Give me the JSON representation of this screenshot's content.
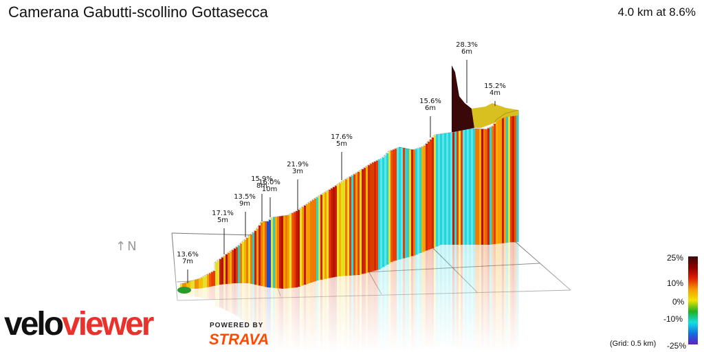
{
  "header": {
    "title": "Camerana Gabutti-scollino Gottasecca",
    "summary": "4.0 km at 8.6%"
  },
  "compass": "↑N",
  "legend": {
    "labels": [
      "25%",
      "10%",
      "0%",
      "-10%",
      "-25%"
    ],
    "grid_note": "(Grid: 0.5 km)",
    "colors": [
      "#3b0a0a",
      "#8b0000",
      "#e02000",
      "#f59a00",
      "#f2e200",
      "#20b020",
      "#10e0e0",
      "#1070e0",
      "#6020c0"
    ]
  },
  "branding": {
    "logo_a": "velo",
    "logo_b": "viewer",
    "powered_by": "POWERED BY",
    "strava": "STRAVA"
  },
  "chart_data": {
    "type": "area",
    "title": "Camerana Gabutti-scollino Gottasecca",
    "distance_km": 4.0,
    "avg_gradient_pct": 8.6,
    "grid_km": 0.5,
    "annotations": [
      {
        "gradient": "13.6%",
        "length": "7m"
      },
      {
        "gradient": "17.1%",
        "length": "5m"
      },
      {
        "gradient": "13.5%",
        "length": "9m"
      },
      {
        "gradient": "15.9%",
        "length": "8m"
      },
      {
        "gradient": "16.0%",
        "length": "10m"
      },
      {
        "gradient": "21.9%",
        "length": "3m"
      },
      {
        "gradient": "17.6%",
        "length": "5m"
      },
      {
        "gradient": "15.6%",
        "length": "6m"
      },
      {
        "gradient": "28.3%",
        "length": "6m"
      },
      {
        "gradient": "15.2%",
        "length": "4m"
      }
    ]
  }
}
